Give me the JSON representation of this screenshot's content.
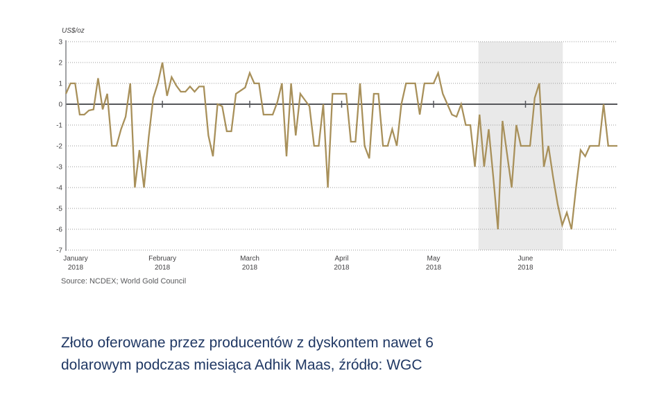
{
  "page": {
    "background": "#ffffff"
  },
  "chart_data": {
    "type": "line",
    "unit_label": "US$/oz",
    "source": "Source: NCDEX; World Gold Council",
    "ylim": [
      -7,
      3
    ],
    "y_ticks": [
      3,
      2,
      1,
      0,
      -1,
      -2,
      -3,
      -4,
      -5,
      -6,
      -7
    ],
    "grid": "dotted-horizontal",
    "legend": "none",
    "line_color": "#A8905A",
    "x_axis": {
      "months": [
        {
          "label": "January",
          "year": "2018",
          "index": 0
        },
        {
          "label": "February",
          "year": "2018",
          "index": 21
        },
        {
          "label": "March",
          "year": "2018",
          "index": 40
        },
        {
          "label": "April",
          "year": "2018",
          "index": 60
        },
        {
          "label": "May",
          "year": "2018",
          "index": 80
        },
        {
          "label": "June",
          "year": "2018",
          "index": 100
        }
      ]
    },
    "values": [
      0.5,
      1,
      1,
      -0.5,
      -0.5,
      -0.3,
      -0.25,
      1.25,
      -0.25,
      0.5,
      -2,
      -2,
      -1.2,
      -0.6,
      1,
      -4,
      -2.2,
      -4,
      -1.6,
      0.3,
      1,
      2,
      0.4,
      1.3,
      0.9,
      0.6,
      0.6,
      0.85,
      0.6,
      0.85,
      0.85,
      -1.5,
      -2.5,
      0,
      -0.1,
      -1.3,
      -1.3,
      0.5,
      0.65,
      0.8,
      1.5,
      1,
      1,
      -0.5,
      -0.5,
      -0.5,
      0.1,
      1,
      -2.5,
      1,
      -1.5,
      0.5,
      0.2,
      -0.1,
      -2,
      -2,
      0,
      -4,
      0.5,
      0.5,
      0.5,
      0.5,
      -1.8,
      -1.8,
      1,
      -2,
      -2.6,
      0.5,
      0.5,
      -2,
      -2,
      -1.2,
      -2,
      0,
      1,
      1,
      1,
      -0.5,
      1,
      1,
      1,
      1.5,
      0.5,
      0,
      -0.5,
      -0.6,
      0,
      -1,
      -1,
      -3,
      -0.5,
      -3,
      -1.2,
      -3.5,
      -6,
      -0.8,
      -2.4,
      -4,
      -1,
      -2,
      -2,
      -2,
      0.3,
      1,
      -3,
      -2,
      -3.5,
      -4.8,
      -5.8,
      -5.2,
      -6,
      -4,
      -2.2,
      -2.5,
      -2,
      -2,
      -2,
      0,
      -2,
      -2,
      -2
    ],
    "shaded_region": {
      "from_frac": 0.748,
      "to_frac": 0.901,
      "color": "#E9E9E9"
    }
  },
  "caption": {
    "text": "Złoto oferowane przez producentów z dyskontem nawet 6 dolarowym podczas miesiąca Adhik Maas, źródło: WGC",
    "color": "#203864"
  }
}
